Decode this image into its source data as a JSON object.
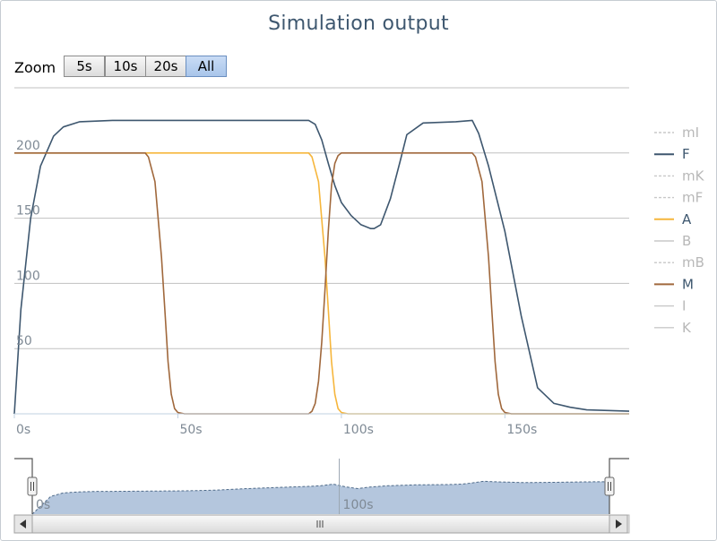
{
  "title": "Simulation output",
  "zoom": {
    "label": "Zoom",
    "buttons": [
      "5s",
      "10s",
      "20s",
      "All"
    ],
    "active": "All"
  },
  "chart_data": {
    "type": "line",
    "title": "Simulation output",
    "xlabel": "",
    "ylabel": "",
    "x_unit": "s",
    "xlim": [
      0,
      188
    ],
    "ylim": [
      0,
      250
    ],
    "x_ticks": [
      0,
      50,
      100,
      150
    ],
    "y_ticks": [
      50,
      100,
      150,
      200
    ],
    "grid": "horizontal",
    "legend_position": "right",
    "series": [
      {
        "name": "mI",
        "visible": false,
        "dashed": true,
        "color": "#c8c8c8",
        "x": [],
        "y": []
      },
      {
        "name": "F",
        "visible": true,
        "dashed": false,
        "color": "#3e576f",
        "x": [
          0,
          2,
          5,
          8,
          12,
          15,
          20,
          30,
          50,
          80,
          90,
          92,
          94,
          96,
          98,
          100,
          103,
          106,
          109,
          110,
          112,
          115,
          118,
          120,
          125,
          135,
          140,
          142,
          145,
          150,
          155,
          160,
          165,
          170,
          175,
          188
        ],
        "y": [
          0,
          80,
          150,
          190,
          213,
          220,
          224,
          225,
          225,
          225,
          225,
          222,
          210,
          192,
          175,
          162,
          152,
          145,
          142,
          142,
          145,
          165,
          194,
          214,
          223,
          224,
          225,
          215,
          190,
          140,
          75,
          20,
          8,
          5,
          3,
          2
        ]
      },
      {
        "name": "mK",
        "visible": false,
        "dashed": true,
        "color": "#c8c8c8",
        "x": [],
        "y": []
      },
      {
        "name": "mF",
        "visible": false,
        "dashed": true,
        "color": "#c8c8c8",
        "x": [],
        "y": []
      },
      {
        "name": "A",
        "visible": true,
        "dashed": false,
        "color": "#f6b63c",
        "x": [
          0,
          90,
          91,
          93,
          95,
          96,
          97,
          98,
          99,
          100,
          102,
          188
        ],
        "y": [
          200,
          200,
          197,
          178,
          120,
          80,
          40,
          15,
          4,
          1,
          0,
          0
        ]
      },
      {
        "name": "B",
        "visible": false,
        "dashed": false,
        "color": "#c8c8c8",
        "x": [],
        "y": []
      },
      {
        "name": "mB",
        "visible": false,
        "dashed": true,
        "color": "#c8c8c8",
        "x": [],
        "y": []
      },
      {
        "name": "M",
        "visible": true,
        "dashed": false,
        "color": "#a0683c",
        "x": [
          0,
          40,
          41,
          43,
          45,
          46,
          47,
          48,
          49,
          50,
          52,
          90,
          91,
          92,
          93,
          94,
          95,
          96,
          97,
          98,
          99,
          100,
          101,
          140,
          141,
          143,
          145,
          146,
          147,
          148,
          149,
          150,
          152,
          188
        ],
        "y": [
          200,
          200,
          197,
          178,
          120,
          80,
          40,
          15,
          4,
          1,
          0,
          0,
          2,
          8,
          25,
          55,
          95,
          140,
          175,
          192,
          198,
          200,
          200,
          200,
          197,
          178,
          120,
          80,
          40,
          15,
          4,
          1,
          0,
          0
        ]
      },
      {
        "name": "I",
        "visible": false,
        "dashed": false,
        "color": "#c8c8c8",
        "x": [],
        "y": []
      },
      {
        "name": "K",
        "visible": false,
        "dashed": false,
        "color": "#c8c8c8",
        "x": [],
        "y": []
      }
    ],
    "navigator": {
      "x_ticks": [
        0,
        100
      ],
      "xlim": [
        0,
        188
      ],
      "ylim": [
        0,
        250
      ],
      "range": [
        0,
        188
      ],
      "x": [
        0,
        3,
        6,
        10,
        15,
        20,
        30,
        50,
        60,
        70,
        80,
        90,
        94,
        98,
        102,
        106,
        110,
        116,
        125,
        135,
        140,
        143,
        147,
        150,
        155,
        160,
        170,
        180,
        188
      ],
      "y": [
        0,
        40,
        80,
        95,
        100,
        102,
        103,
        105,
        108,
        115,
        120,
        125,
        128,
        135,
        123,
        115,
        122,
        128,
        132,
        133,
        135,
        140,
        148,
        146,
        144,
        142,
        143,
        145,
        146
      ]
    }
  }
}
